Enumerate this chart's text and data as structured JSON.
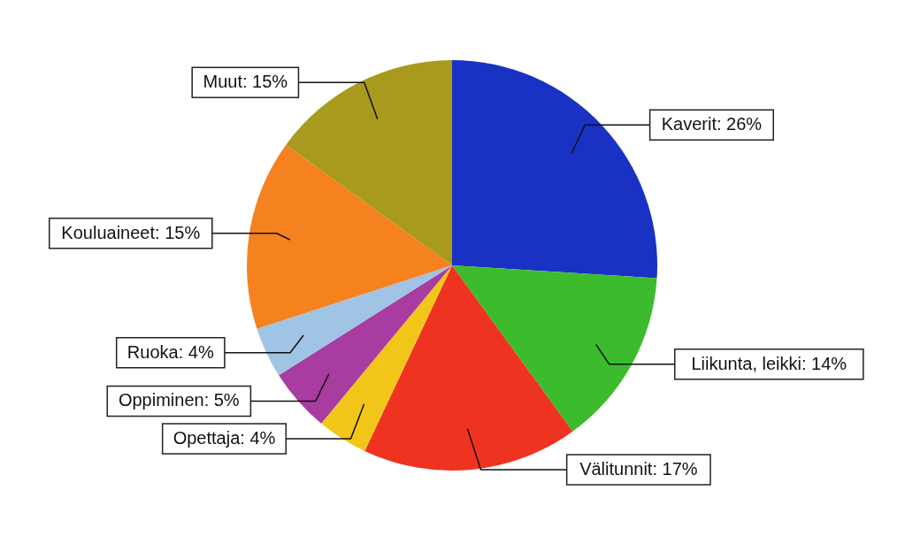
{
  "chart_data": {
    "type": "pie",
    "categories": [
      "Kaverit",
      "Liikunta, leikki",
      "Välitunnit",
      "Opettaja",
      "Oppiminen",
      "Ruoka",
      "Kouluaineet",
      "Muut"
    ],
    "values": [
      26,
      14,
      17,
      4,
      5,
      4,
      15,
      15
    ],
    "colors": [
      "#1a32c4",
      "#3cbc2c",
      "#ee3420",
      "#f2c618",
      "#a83ca0",
      "#a0c4e4",
      "#f5821e",
      "#a89a1c"
    ],
    "value_labels": [
      "26%",
      "14%",
      "17%",
      "4%",
      "5%",
      "4%",
      "15%",
      "15%"
    ]
  }
}
